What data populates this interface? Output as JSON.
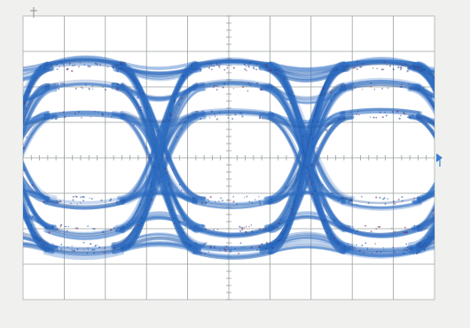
{
  "chart_data": {
    "type": "eye-diagram",
    "divisions": {
      "horizontal": 10,
      "vertical": 8
    },
    "subdivisions_per_division": 5,
    "xlim": [
      0,
      10
    ],
    "ylim": [
      -4,
      4
    ],
    "unit_interval_divisions": 3.6,
    "first_crossing_div": 3.3,
    "crossings_div": [
      3.3,
      6.9
    ],
    "levels_div": {
      "high": [
        1.2,
        2.0,
        2.55,
        2.6
      ],
      "low": [
        -1.2,
        -2.0,
        -2.5,
        -2.6
      ]
    },
    "eye_height_div": 2.3,
    "grid": true,
    "colors": {
      "trace": "#2f6fc4",
      "trace_dark": "#1f4f9a",
      "trace_noise": "#7b2a5a",
      "grid": "#9aa0a0",
      "screen": "#ffffff",
      "trigger_marker": "#3a7fd0"
    },
    "markers": {
      "top_marker_icon": "top-tick-icon",
      "trigger_level_icon": "trigger-arrow-icon"
    }
  }
}
